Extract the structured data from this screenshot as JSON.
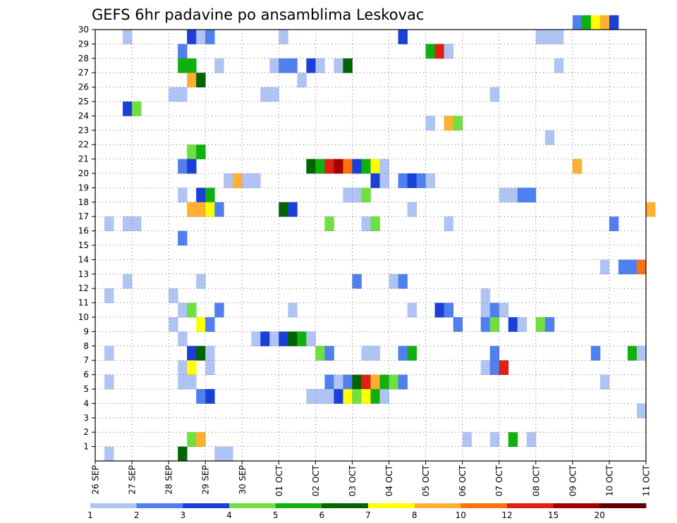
{
  "chart_data": {
    "type": "heatmap",
    "title": "GEFS 6hr padavine po ansamblima Leskovac",
    "xlabel": "",
    "ylabel": "",
    "x_range": [
      0,
      60
    ],
    "y_range": [
      0,
      30
    ],
    "x_ticks": [
      {
        "x": 0,
        "label": "26 SEP"
      },
      {
        "x": 4,
        "label": "27 SEP"
      },
      {
        "x": 8,
        "label": "28 SEP"
      },
      {
        "x": 12,
        "label": "29 SEP"
      },
      {
        "x": 16,
        "label": "30 SEP"
      },
      {
        "x": 20,
        "label": "01 OCT"
      },
      {
        "x": 24,
        "label": "02 OCT"
      },
      {
        "x": 28,
        "label": "03 OCT"
      },
      {
        "x": 32,
        "label": "04 OCT"
      },
      {
        "x": 36,
        "label": "05 OCT"
      },
      {
        "x": 40,
        "label": "06 OCT"
      },
      {
        "x": 44,
        "label": "07 OCT"
      },
      {
        "x": 48,
        "label": "08 OCT"
      },
      {
        "x": 52,
        "label": "09 OCT"
      },
      {
        "x": 56,
        "label": "10 OCT"
      },
      {
        "x": 60,
        "label": "11 OCT"
      }
    ],
    "y_ticks": [
      "1",
      "2",
      "3",
      "4",
      "5",
      "6",
      "7",
      "8",
      "9",
      "10",
      "11",
      "12",
      "13",
      "14",
      "15",
      "16",
      "17",
      "18",
      "19",
      "20",
      "21",
      "22",
      "23",
      "24",
      "25",
      "26",
      "27",
      "28",
      "29",
      "30"
    ],
    "grid": true,
    "legend": "bottom",
    "colorbar": {
      "labels": [
        "1",
        "2",
        "3",
        "4",
        "5",
        "6",
        "7",
        "8",
        "10",
        "12",
        "15",
        "20"
      ],
      "colors": [
        "#b0c4f4",
        "#5080f0",
        "#1a40d8",
        "#70e040",
        "#10b010",
        "#006400",
        "#ffff00",
        "#ffb030",
        "#ff7010",
        "#e02010",
        "#a00000",
        "#600000"
      ]
    },
    "cells": [
      {
        "m": 30,
        "x": 52,
        "c": 1
      },
      {
        "m": 30,
        "x": 53,
        "c": 4
      },
      {
        "m": 30,
        "x": 54,
        "c": 6
      },
      {
        "m": 30,
        "x": 55,
        "c": 7
      },
      {
        "m": 30,
        "x": 56,
        "c": 2
      },
      {
        "m": 29,
        "x": 3,
        "c": 0
      },
      {
        "m": 29,
        "x": 10,
        "c": 2
      },
      {
        "m": 29,
        "x": 11,
        "c": 0
      },
      {
        "m": 29,
        "x": 12,
        "c": 1
      },
      {
        "m": 29,
        "x": 20,
        "c": 0
      },
      {
        "m": 29,
        "x": 33,
        "c": 2
      },
      {
        "m": 29,
        "x": 48,
        "c": 0
      },
      {
        "m": 29,
        "x": 49,
        "c": 0
      },
      {
        "m": 29,
        "x": 50,
        "c": 0
      },
      {
        "m": 28,
        "x": 9,
        "c": 1
      },
      {
        "m": 28,
        "x": 36,
        "c": 4
      },
      {
        "m": 28,
        "x": 37,
        "c": 9
      },
      {
        "m": 28,
        "x": 38,
        "c": 0
      },
      {
        "m": 27,
        "x": 9,
        "c": 4
      },
      {
        "m": 27,
        "x": 10,
        "c": 4
      },
      {
        "m": 27,
        "x": 13,
        "c": 0
      },
      {
        "m": 27,
        "x": 19,
        "c": 0
      },
      {
        "m": 27,
        "x": 20,
        "c": 1
      },
      {
        "m": 27,
        "x": 21,
        "c": 1
      },
      {
        "m": 27,
        "x": 23,
        "c": 2
      },
      {
        "m": 27,
        "x": 24,
        "c": 0
      },
      {
        "m": 27,
        "x": 26,
        "c": 0
      },
      {
        "m": 27,
        "x": 27,
        "c": 5
      },
      {
        "m": 27,
        "x": 50,
        "c": 0
      },
      {
        "m": 26,
        "x": 10,
        "c": 7
      },
      {
        "m": 26,
        "x": 11,
        "c": 5
      },
      {
        "m": 26,
        "x": 22,
        "c": 0
      },
      {
        "m": 25,
        "x": 8,
        "c": 0
      },
      {
        "m": 25,
        "x": 9,
        "c": 0
      },
      {
        "m": 25,
        "x": 18,
        "c": 0
      },
      {
        "m": 25,
        "x": 19,
        "c": 0
      },
      {
        "m": 25,
        "x": 43,
        "c": 0
      },
      {
        "m": 24,
        "x": 3,
        "c": 2
      },
      {
        "m": 24,
        "x": 4,
        "c": 3
      },
      {
        "m": 23,
        "x": 36,
        "c": 0
      },
      {
        "m": 23,
        "x": 38,
        "c": 7
      },
      {
        "m": 23,
        "x": 39,
        "c": 3
      },
      {
        "m": 22,
        "x": 49,
        "c": 0
      },
      {
        "m": 21,
        "x": 10,
        "c": 3
      },
      {
        "m": 21,
        "x": 11,
        "c": 4
      },
      {
        "m": 20,
        "x": 9,
        "c": 1
      },
      {
        "m": 20,
        "x": 10,
        "c": 2
      },
      {
        "m": 20,
        "x": 23,
        "c": 5
      },
      {
        "m": 20,
        "x": 24,
        "c": 4
      },
      {
        "m": 20,
        "x": 25,
        "c": 9
      },
      {
        "m": 20,
        "x": 26,
        "c": 10
      },
      {
        "m": 20,
        "x": 27,
        "c": 8
      },
      {
        "m": 20,
        "x": 28,
        "c": 2
      },
      {
        "m": 20,
        "x": 29,
        "c": 4
      },
      {
        "m": 20,
        "x": 30,
        "c": 6
      },
      {
        "m": 20,
        "x": 31,
        "c": 0
      },
      {
        "m": 20,
        "x": 52,
        "c": 7
      },
      {
        "m": 19,
        "x": 14,
        "c": 0
      },
      {
        "m": 19,
        "x": 15,
        "c": 7
      },
      {
        "m": 19,
        "x": 16,
        "c": 0
      },
      {
        "m": 19,
        "x": 17,
        "c": 0
      },
      {
        "m": 19,
        "x": 30,
        "c": 2
      },
      {
        "m": 19,
        "x": 31,
        "c": 0
      },
      {
        "m": 19,
        "x": 33,
        "c": 1
      },
      {
        "m": 19,
        "x": 34,
        "c": 2
      },
      {
        "m": 19,
        "x": 35,
        "c": 1
      },
      {
        "m": 19,
        "x": 36,
        "c": 0
      },
      {
        "m": 18,
        "x": 9,
        "c": 0
      },
      {
        "m": 18,
        "x": 11,
        "c": 2
      },
      {
        "m": 18,
        "x": 12,
        "c": 4
      },
      {
        "m": 18,
        "x": 27,
        "c": 0
      },
      {
        "m": 18,
        "x": 28,
        "c": 0
      },
      {
        "m": 18,
        "x": 29,
        "c": 3
      },
      {
        "m": 18,
        "x": 44,
        "c": 0
      },
      {
        "m": 18,
        "x": 45,
        "c": 0
      },
      {
        "m": 18,
        "x": 46,
        "c": 1
      },
      {
        "m": 18,
        "x": 47,
        "c": 1
      },
      {
        "m": 17,
        "x": 10,
        "c": 7
      },
      {
        "m": 17,
        "x": 11,
        "c": 7
      },
      {
        "m": 17,
        "x": 12,
        "c": 6
      },
      {
        "m": 17,
        "x": 13,
        "c": 1
      },
      {
        "m": 17,
        "x": 20,
        "c": 5
      },
      {
        "m": 17,
        "x": 21,
        "c": 2
      },
      {
        "m": 17,
        "x": 34,
        "c": 0
      },
      {
        "m": 17,
        "x": 60,
        "c": 7
      },
      {
        "m": 16,
        "x": 1,
        "c": 0
      },
      {
        "m": 16,
        "x": 3,
        "c": 0
      },
      {
        "m": 16,
        "x": 4,
        "c": 0
      },
      {
        "m": 16,
        "x": 25,
        "c": 3
      },
      {
        "m": 16,
        "x": 29,
        "c": 0
      },
      {
        "m": 16,
        "x": 30,
        "c": 3
      },
      {
        "m": 16,
        "x": 38,
        "c": 0
      },
      {
        "m": 16,
        "x": 56,
        "c": 1
      },
      {
        "m": 15,
        "x": 9,
        "c": 1
      },
      {
        "m": 13,
        "x": 55,
        "c": 0
      },
      {
        "m": 13,
        "x": 57,
        "c": 1
      },
      {
        "m": 13,
        "x": 58,
        "c": 1
      },
      {
        "m": 13,
        "x": 59,
        "c": 8
      },
      {
        "m": 12,
        "x": 3,
        "c": 0
      },
      {
        "m": 12,
        "x": 11,
        "c": 0
      },
      {
        "m": 12,
        "x": 28,
        "c": 1
      },
      {
        "m": 12,
        "x": 32,
        "c": 0
      },
      {
        "m": 12,
        "x": 33,
        "c": 1
      },
      {
        "m": 11,
        "x": 1,
        "c": 0
      },
      {
        "m": 11,
        "x": 8,
        "c": 0
      },
      {
        "m": 11,
        "x": 42,
        "c": 0
      },
      {
        "m": 10,
        "x": 9,
        "c": 0
      },
      {
        "m": 10,
        "x": 10,
        "c": 3
      },
      {
        "m": 10,
        "x": 13,
        "c": 1
      },
      {
        "m": 10,
        "x": 21,
        "c": 0
      },
      {
        "m": 10,
        "x": 34,
        "c": 0
      },
      {
        "m": 10,
        "x": 37,
        "c": 2
      },
      {
        "m": 10,
        "x": 38,
        "c": 1
      },
      {
        "m": 10,
        "x": 42,
        "c": 0
      },
      {
        "m": 10,
        "x": 43,
        "c": 1
      },
      {
        "m": 10,
        "x": 44,
        "c": 0
      },
      {
        "m": 9,
        "x": 8,
        "c": 0
      },
      {
        "m": 9,
        "x": 11,
        "c": 6
      },
      {
        "m": 9,
        "x": 12,
        "c": 1
      },
      {
        "m": 9,
        "x": 39,
        "c": 1
      },
      {
        "m": 9,
        "x": 42,
        "c": 1
      },
      {
        "m": 9,
        "x": 43,
        "c": 3
      },
      {
        "m": 9,
        "x": 45,
        "c": 2
      },
      {
        "m": 9,
        "x": 46,
        "c": 0
      },
      {
        "m": 9,
        "x": 48,
        "c": 3
      },
      {
        "m": 9,
        "x": 49,
        "c": 1
      },
      {
        "m": 8,
        "x": 9,
        "c": 0
      },
      {
        "m": 8,
        "x": 17,
        "c": 0
      },
      {
        "m": 8,
        "x": 18,
        "c": 2
      },
      {
        "m": 8,
        "x": 19,
        "c": 0
      },
      {
        "m": 8,
        "x": 20,
        "c": 2
      },
      {
        "m": 8,
        "x": 21,
        "c": 5
      },
      {
        "m": 8,
        "x": 22,
        "c": 4
      },
      {
        "m": 8,
        "x": 23,
        "c": 0
      },
      {
        "m": 7,
        "x": 1,
        "c": 0
      },
      {
        "m": 7,
        "x": 10,
        "c": 2
      },
      {
        "m": 7,
        "x": 11,
        "c": 5
      },
      {
        "m": 7,
        "x": 12,
        "c": 0
      },
      {
        "m": 7,
        "x": 24,
        "c": 3
      },
      {
        "m": 7,
        "x": 25,
        "c": 1
      },
      {
        "m": 7,
        "x": 29,
        "c": 0
      },
      {
        "m": 7,
        "x": 30,
        "c": 0
      },
      {
        "m": 7,
        "x": 33,
        "c": 1
      },
      {
        "m": 7,
        "x": 34,
        "c": 4
      },
      {
        "m": 7,
        "x": 43,
        "c": 1
      },
      {
        "m": 7,
        "x": 54,
        "c": 1
      },
      {
        "m": 7,
        "x": 58,
        "c": 4
      },
      {
        "m": 7,
        "x": 59,
        "c": 0
      },
      {
        "m": 6,
        "x": 9,
        "c": 0
      },
      {
        "m": 6,
        "x": 10,
        "c": 6
      },
      {
        "m": 6,
        "x": 12,
        "c": 0
      },
      {
        "m": 6,
        "x": 42,
        "c": 0
      },
      {
        "m": 6,
        "x": 43,
        "c": 1
      },
      {
        "m": 6,
        "x": 44,
        "c": 9
      },
      {
        "m": 5,
        "x": 1,
        "c": 0
      },
      {
        "m": 5,
        "x": 9,
        "c": 0
      },
      {
        "m": 5,
        "x": 10,
        "c": 0
      },
      {
        "m": 5,
        "x": 25,
        "c": 1
      },
      {
        "m": 5,
        "x": 26,
        "c": 0
      },
      {
        "m": 5,
        "x": 27,
        "c": 1
      },
      {
        "m": 5,
        "x": 28,
        "c": 5
      },
      {
        "m": 5,
        "x": 29,
        "c": 9
      },
      {
        "m": 5,
        "x": 30,
        "c": 7
      },
      {
        "m": 5,
        "x": 31,
        "c": 4
      },
      {
        "m": 5,
        "x": 32,
        "c": 3
      },
      {
        "m": 5,
        "x": 33,
        "c": 1
      },
      {
        "m": 5,
        "x": 55,
        "c": 0
      },
      {
        "m": 4,
        "x": 11,
        "c": 1
      },
      {
        "m": 4,
        "x": 12,
        "c": 2
      },
      {
        "m": 4,
        "x": 23,
        "c": 0
      },
      {
        "m": 4,
        "x": 24,
        "c": 0
      },
      {
        "m": 4,
        "x": 25,
        "c": 0
      },
      {
        "m": 4,
        "x": 26,
        "c": 2
      },
      {
        "m": 4,
        "x": 27,
        "c": 6
      },
      {
        "m": 4,
        "x": 28,
        "c": 3
      },
      {
        "m": 4,
        "x": 29,
        "c": 6
      },
      {
        "m": 4,
        "x": 30,
        "c": 4
      },
      {
        "m": 4,
        "x": 31,
        "c": 0
      },
      {
        "m": 3,
        "x": 59,
        "c": 0
      },
      {
        "m": 1,
        "x": 10,
        "c": 3
      },
      {
        "m": 1,
        "x": 11,
        "c": 7
      },
      {
        "m": 1,
        "x": 40,
        "c": 0
      },
      {
        "m": 1,
        "x": 43,
        "c": 0
      },
      {
        "m": 1,
        "x": 45,
        "c": 4
      },
      {
        "m": 1,
        "x": 47,
        "c": 0
      },
      {
        "m": 0,
        "x": 1,
        "c": 0
      },
      {
        "m": 0,
        "x": 9,
        "c": 5
      },
      {
        "m": 0,
        "x": 13,
        "c": 0
      },
      {
        "m": 0,
        "x": 14,
        "c": 0
      }
    ]
  }
}
